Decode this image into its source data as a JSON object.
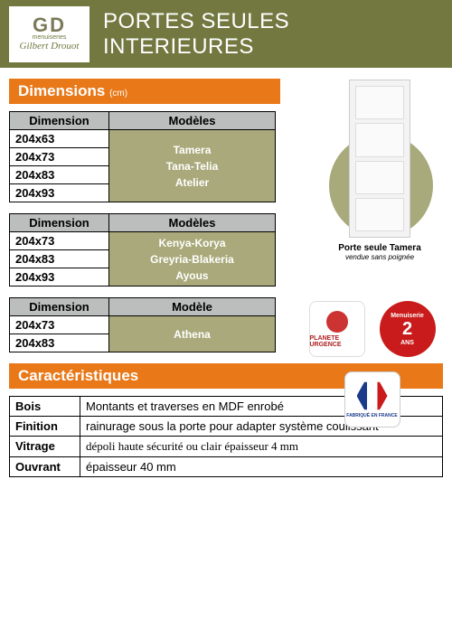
{
  "colors": {
    "olive": "#72783f",
    "orange": "#e87818",
    "khaki": "#a9a97b",
    "grey": "#bcbdbd"
  },
  "logo": {
    "initials": "GD",
    "line1": "menuiseries",
    "signature": "Gilbert Drouot"
  },
  "header": {
    "title": "PORTES SEULES INTERIEURES"
  },
  "sections": {
    "dimensions": {
      "label": "Dimensions",
      "unit": "(cm)"
    },
    "caracteristiques": {
      "label": "Caractéristiques"
    }
  },
  "tables": [
    {
      "head_dim": "Dimension",
      "head_mod": "Modèles",
      "rows": [
        "204x63",
        "204x73",
        "204x83",
        "204x93"
      ],
      "models": "Tamera\nTana-Telia\nAtelier"
    },
    {
      "head_dim": "Dimension",
      "head_mod": "Modèles",
      "rows": [
        "204x73",
        "204x83",
        "204x93"
      ],
      "models": "Kenya-Korya\nGreyria-Blakeria\nAyous"
    },
    {
      "head_dim": "Dimension",
      "head_mod": "Modèle",
      "rows": [
        "204x73",
        "204x83"
      ],
      "models": "Athena"
    }
  ],
  "door": {
    "caption": "Porte seule Tamera",
    "subcaption": "vendue sans poignée"
  },
  "badges": {
    "planete": "PLANETE URGENCE",
    "garantie_top": "Menuiserie",
    "garantie_n": "2",
    "garantie_ans": "ANS",
    "france": "FABRIQUÉ EN FRANCE"
  },
  "char": [
    {
      "k": "Bois",
      "v": "Montants et traverses en MDF enrobé"
    },
    {
      "k": "Finition",
      "v": "rainurage sous la porte pour adapter système coulissant"
    },
    {
      "k": "Vitrage",
      "v": "dépoli haute sécurité ou clair épaisseur 4 mm",
      "serif": true
    },
    {
      "k": "Ouvrant",
      "v": "épaisseur 40 mm"
    }
  ]
}
